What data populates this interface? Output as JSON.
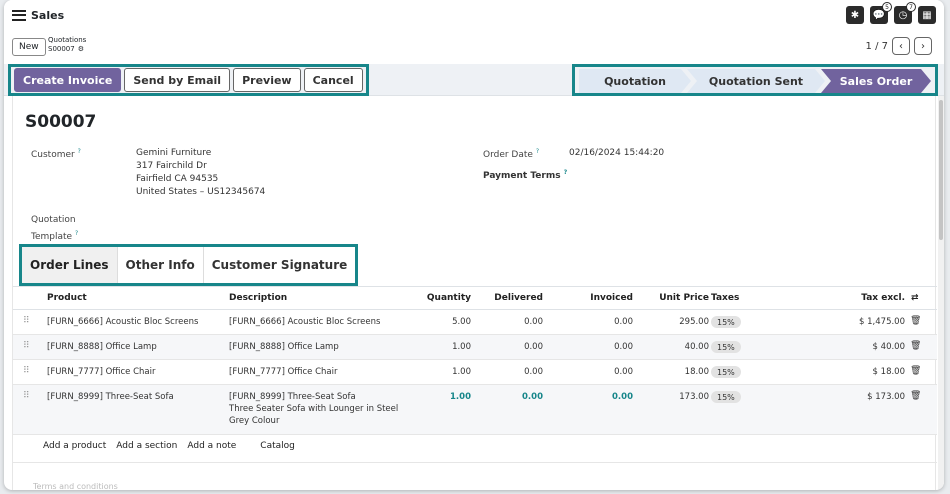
{
  "app": {
    "name": "Sales"
  },
  "topbar": {
    "icons": [
      "bug-icon",
      "chat-icon",
      "clock-icon",
      "calculator-icon"
    ],
    "chat_count": "5",
    "activity_count": "7"
  },
  "breadcrumb": {
    "new_label": "New",
    "parent": "Quotations",
    "current": "S00007"
  },
  "pager": {
    "text": "1 / 7"
  },
  "actions": {
    "create_invoice": "Create Invoice",
    "send_email": "Send by Email",
    "preview": "Preview",
    "cancel": "Cancel"
  },
  "stages": [
    {
      "label": "Quotation",
      "active": false
    },
    {
      "label": "Quotation Sent",
      "active": false
    },
    {
      "label": "Sales Order",
      "active": true
    }
  ],
  "record": {
    "title": "S00007",
    "customer_label": "Customer",
    "customer_name": "Gemini Furniture",
    "address_line1": "317 Fairchild Dr",
    "address_line2": "Fairfield CA 94535",
    "address_line3": "United States – US12345674",
    "template_label_1": "Quotation",
    "template_label_2": "Template",
    "order_date_label": "Order Date",
    "order_date": "02/16/2024 15:44:20",
    "payment_terms_label": "Payment Terms",
    "help_mark": "?"
  },
  "tabs": [
    "Order Lines",
    "Other Info",
    "Customer Signature"
  ],
  "table": {
    "headers": {
      "product": "Product",
      "description": "Description",
      "quantity": "Quantity",
      "delivered": "Delivered",
      "invoiced": "Invoiced",
      "unit_price": "Unit Price",
      "taxes": "Taxes",
      "tax_excl": "Tax excl."
    },
    "rows": [
      {
        "product": "[FURN_6666] Acoustic Bloc Screens",
        "desc1": "[FURN_6666] Acoustic Bloc Screens",
        "desc2": "",
        "desc3": "",
        "qty": "5.00",
        "delivered": "0.00",
        "invoiced": "0.00",
        "price": "295.00",
        "tax": "15%",
        "total": "$ 1,475.00"
      },
      {
        "product": "[FURN_8888] Office Lamp",
        "desc1": "[FURN_8888] Office Lamp",
        "desc2": "",
        "desc3": "",
        "qty": "1.00",
        "delivered": "0.00",
        "invoiced": "0.00",
        "price": "40.00",
        "tax": "15%",
        "total": "$ 40.00"
      },
      {
        "product": "[FURN_7777] Office Chair",
        "desc1": "[FURN_7777] Office Chair",
        "desc2": "",
        "desc3": "",
        "qty": "1.00",
        "delivered": "0.00",
        "invoiced": "0.00",
        "price": "18.00",
        "tax": "15%",
        "total": "$ 18.00"
      },
      {
        "product": "[FURN_8999] Three-Seat Sofa",
        "desc1": "[FURN_8999] Three-Seat Sofa",
        "desc2": "Three Seater Sofa with Lounger in Steel",
        "desc3": "Grey Colour",
        "qty": "1.00",
        "delivered": "0.00",
        "invoiced": "0.00",
        "price": "173.00",
        "tax": "15%",
        "total": "$ 173.00"
      }
    ],
    "add_product": "Add a product",
    "add_section": "Add a section",
    "add_note": "Add a note",
    "catalog": "Catalog"
  },
  "footer": {
    "terms_placeholder": "Terms and conditions"
  },
  "colors": {
    "accent": "#71639e",
    "highlight": "#17868a"
  }
}
